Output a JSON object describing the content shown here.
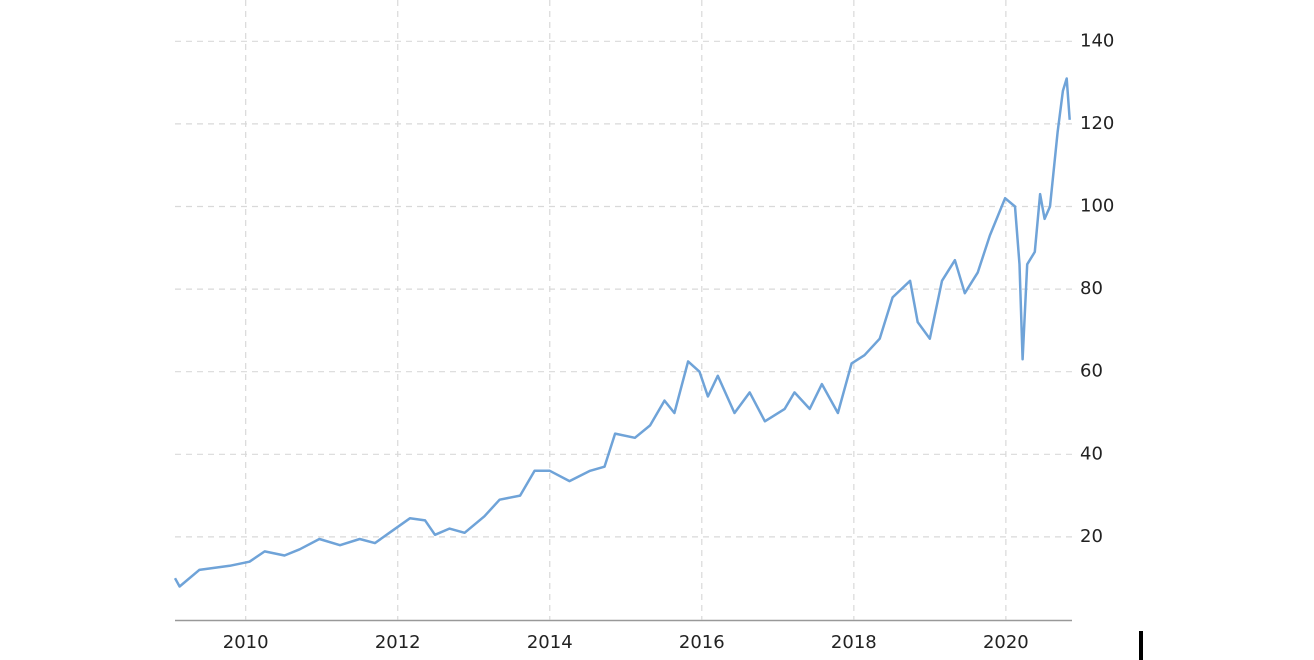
{
  "chart_data": {
    "type": "line",
    "x": [
      2009.07,
      2009.13,
      2009.39,
      2009.79,
      2010.05,
      2010.25,
      2010.51,
      2010.71,
      2010.97,
      2011.24,
      2011.5,
      2011.7,
      2011.89,
      2012.16,
      2012.36,
      2012.49,
      2012.68,
      2012.88,
      2013.14,
      2013.34,
      2013.61,
      2013.8,
      2014.0,
      2014.26,
      2014.53,
      2014.72,
      2014.86,
      2015.12,
      2015.32,
      2015.51,
      2015.64,
      2015.82,
      2015.97,
      2016.08,
      2016.21,
      2016.43,
      2016.63,
      2016.83,
      2017.09,
      2017.22,
      2017.42,
      2017.58,
      2017.79,
      2017.97,
      2018.14,
      2018.34,
      2018.51,
      2018.74,
      2018.84,
      2019.0,
      2019.16,
      2019.33,
      2019.46,
      2019.63,
      2019.79,
      2019.99,
      2020.12,
      2020.18,
      2020.22,
      2020.28,
      2020.38,
      2020.45,
      2020.51,
      2020.58,
      2020.68,
      2020.75,
      2020.8,
      2020.84
    ],
    "series": [
      {
        "color": "#6fa3d8",
        "values": [
          10,
          8,
          12,
          13,
          14,
          16.5,
          15.5,
          17,
          19.5,
          18,
          19.5,
          18.5,
          21,
          24.5,
          24,
          20.5,
          22,
          21,
          25,
          29,
          30,
          36,
          36,
          33.5,
          36,
          37,
          45,
          44,
          47,
          53,
          50,
          62.5,
          60,
          54,
          59,
          50,
          55,
          48,
          51,
          55,
          51,
          57,
          50,
          62,
          64,
          68,
          78,
          82,
          72,
          68,
          82,
          87,
          79,
          84,
          93,
          102,
          100,
          86,
          63,
          86,
          89,
          103,
          97,
          100,
          118,
          128,
          131,
          121
        ]
      }
    ],
    "xlim": [
      2009.07,
      2020.87
    ],
    "xticks": [
      2010,
      2012,
      2014,
      2016,
      2018,
      2020
    ],
    "ylim": [
      0,
      150
    ],
    "yticks": [
      20,
      40,
      60,
      80,
      100,
      120,
      140
    ],
    "grid": true
  }
}
